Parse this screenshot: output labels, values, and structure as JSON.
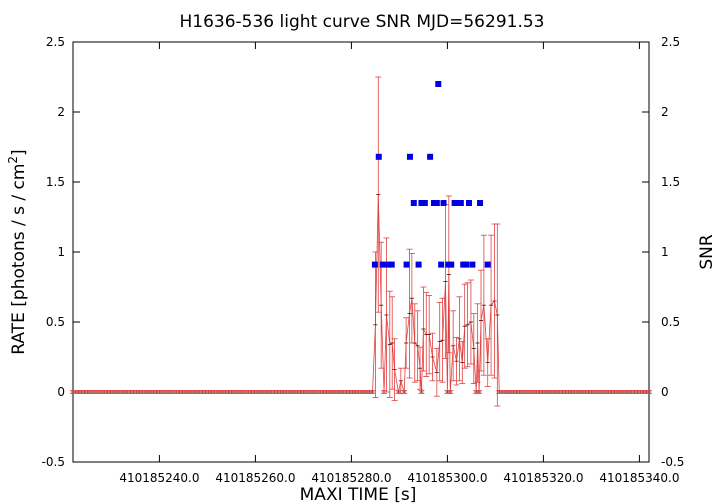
{
  "chart_data": {
    "type": "scatter",
    "title": "H1636-536 light curve  SNR MJD=56291.53",
    "xlabel": "MAXI TIME [s]",
    "ylabel": "RATE [photons / s / cm",
    "ylabel_sup": "2",
    "ylabel_end": "]",
    "y2label": "SNR",
    "xlim": [
      410185222.0,
      410185342.0
    ],
    "ylim": [
      -0.5,
      2.5
    ],
    "y2lim": [
      -0.5,
      2.5
    ],
    "xticks": [
      410185240.0,
      410185260.0,
      410185280.0,
      410185300.0,
      410185320.0,
      410185340.0
    ],
    "xtick_labels": [
      "410185240.0",
      "410185260.0",
      "410185280.0",
      "410185300.0",
      "410185320.0",
      "410185340.0"
    ],
    "yticks": [
      -0.5,
      0,
      0.5,
      1,
      1.5,
      2,
      2.5
    ],
    "ytick_labels": [
      "-0.5",
      "0",
      "0.5",
      "1",
      "1.5",
      "2",
      "2.5"
    ],
    "y2tick_labels": [
      "-0.5",
      "0",
      "0.5",
      "1",
      "1.5",
      "2",
      "2.5"
    ],
    "grid": false,
    "colors": {
      "rate": "#e04040",
      "snr": "#0000e0"
    },
    "rate": {
      "x_start": 410185222.0,
      "x_step": 0.6,
      "count": 201,
      "error_zero": 0.01,
      "points": [
        {
          "x": 410185285.0,
          "y": 0.48,
          "err": 0.52
        },
        {
          "x": 410185285.6,
          "y": 1.41,
          "err": 0.84
        },
        {
          "x": 410185286.2,
          "y": 0.62,
          "err": 0.45
        },
        {
          "x": 410185287.3,
          "y": 0.55,
          "err": 0.55
        },
        {
          "x": 410185288.0,
          "y": 0.34,
          "err": 0.38
        },
        {
          "x": 410185288.5,
          "y": 0.35,
          "err": 0.33
        },
        {
          "x": 410185289.0,
          "y": 0.16,
          "err": 0.22
        },
        {
          "x": 410185290.3,
          "y": 0.08,
          "err": 0.09
        },
        {
          "x": 410185291.4,
          "y": 0.35,
          "err": 0.18
        },
        {
          "x": 410185292.1,
          "y": 0.56,
          "err": 0.46
        },
        {
          "x": 410185292.6,
          "y": 0.67,
          "err": 0.32
        },
        {
          "x": 410185293.2,
          "y": 0.35,
          "err": 0.28
        },
        {
          "x": 410185293.8,
          "y": 0.33,
          "err": 0.25
        },
        {
          "x": 410185294.3,
          "y": 0.17,
          "err": 0.15
        },
        {
          "x": 410185295.0,
          "y": 0.45,
          "err": 0.3
        },
        {
          "x": 410185295.6,
          "y": 0.41,
          "err": 0.3
        },
        {
          "x": 410185296.2,
          "y": 0.41,
          "err": 0.28
        },
        {
          "x": 410185296.9,
          "y": 0.25,
          "err": 0.17
        },
        {
          "x": 410185297.8,
          "y": 0.14,
          "err": 0.17
        },
        {
          "x": 410185298.4,
          "y": 0.36,
          "err": 0.28
        },
        {
          "x": 410185299.0,
          "y": 0.37,
          "err": 0.3
        },
        {
          "x": 410185299.6,
          "y": 0.79,
          "err": 0.55
        },
        {
          "x": 410185300.3,
          "y": 0.84,
          "err": 0.56
        },
        {
          "x": 410185301.2,
          "y": 0.33,
          "err": 0.25
        },
        {
          "x": 410185301.9,
          "y": 0.22,
          "err": 0.17
        },
        {
          "x": 410185302.5,
          "y": 0.38,
          "err": 0.3
        },
        {
          "x": 410185303.1,
          "y": 0.21,
          "err": 0.15
        },
        {
          "x": 410185303.6,
          "y": 0.47,
          "err": 0.3
        },
        {
          "x": 410185304.2,
          "y": 0.48,
          "err": 0.3
        },
        {
          "x": 410185304.9,
          "y": 0.5,
          "err": 0.3
        },
        {
          "x": 410185305.5,
          "y": 0.31,
          "err": 0.25
        },
        {
          "x": 410185306.3,
          "y": 0.35,
          "err": 0.28
        },
        {
          "x": 410185307.0,
          "y": 0.51,
          "err": 0.36
        },
        {
          "x": 410185307.6,
          "y": 0.62,
          "err": 0.5
        },
        {
          "x": 410185308.4,
          "y": 0.21,
          "err": 0.17
        },
        {
          "x": 410185309.1,
          "y": 0.62,
          "err": 0.5
        },
        {
          "x": 410185309.8,
          "y": 0.65,
          "err": 0.55
        },
        {
          "x": 410185310.4,
          "y": 0.55,
          "err": 0.65
        }
      ]
    },
    "snr": [
      {
        "x": 410185284.9,
        "y": 0.91
      },
      {
        "x": 410185285.7,
        "y": 1.68
      },
      {
        "x": 410185286.5,
        "y": 0.91
      },
      {
        "x": 410185287.7,
        "y": 0.91
      },
      {
        "x": 410185288.4,
        "y": 0.91
      },
      {
        "x": 410185291.5,
        "y": 0.91
      },
      {
        "x": 410185292.2,
        "y": 1.68
      },
      {
        "x": 410185293.0,
        "y": 1.35
      },
      {
        "x": 410185294.0,
        "y": 0.91
      },
      {
        "x": 410185294.6,
        "y": 1.35
      },
      {
        "x": 410185295.3,
        "y": 1.35
      },
      {
        "x": 410185296.4,
        "y": 1.68
      },
      {
        "x": 410185297.2,
        "y": 1.35
      },
      {
        "x": 410185297.8,
        "y": 1.35
      },
      {
        "x": 410185298.1,
        "y": 2.2
      },
      {
        "x": 410185298.7,
        "y": 0.91
      },
      {
        "x": 410185299.2,
        "y": 1.35
      },
      {
        "x": 410185300.2,
        "y": 0.91
      },
      {
        "x": 410185300.8,
        "y": 0.91
      },
      {
        "x": 410185301.5,
        "y": 1.35
      },
      {
        "x": 410185302.1,
        "y": 1.35
      },
      {
        "x": 410185302.8,
        "y": 1.35
      },
      {
        "x": 410185303.3,
        "y": 0.91
      },
      {
        "x": 410185303.9,
        "y": 0.91
      },
      {
        "x": 410185304.5,
        "y": 1.35
      },
      {
        "x": 410185305.2,
        "y": 0.91
      },
      {
        "x": 410185306.8,
        "y": 1.35
      },
      {
        "x": 410185308.4,
        "y": 0.91
      }
    ]
  }
}
